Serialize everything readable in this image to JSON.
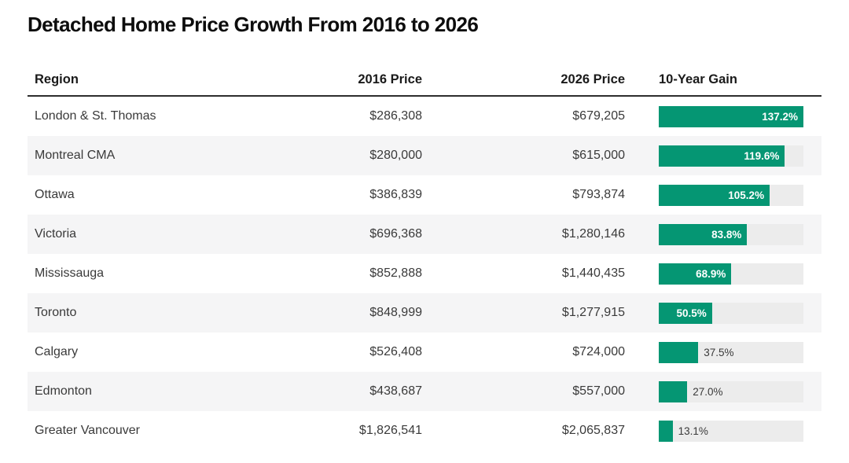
{
  "page": {
    "title": "Detached Home Price Growth From 2016 to 2026"
  },
  "table": {
    "headers": {
      "region": "Region",
      "price_2016": "2016 Price",
      "price_2026": "2026 Price",
      "gain": "10-Year Gain"
    },
    "rows": [
      {
        "region": "London & St. Thomas",
        "price_2016": "$286,308",
        "price_2026": "$679,205",
        "gain_label": "137.2%",
        "gain_value": 137.2,
        "label_inside": true,
        "striped": false
      },
      {
        "region": "Montreal CMA",
        "price_2016": "$280,000",
        "price_2026": "$615,000",
        "gain_label": "119.6%",
        "gain_value": 119.6,
        "label_inside": true,
        "striped": true
      },
      {
        "region": "Ottawa",
        "price_2016": "$386,839",
        "price_2026": "$793,874",
        "gain_label": "105.2%",
        "gain_value": 105.2,
        "label_inside": true,
        "striped": false
      },
      {
        "region": "Victoria",
        "price_2016": "$696,368",
        "price_2026": "$1,280,146",
        "gain_label": "83.8%",
        "gain_value": 83.8,
        "label_inside": true,
        "striped": true
      },
      {
        "region": "Mississauga",
        "price_2016": "$852,888",
        "price_2026": "$1,440,435",
        "gain_label": "68.9%",
        "gain_value": 68.9,
        "label_inside": true,
        "striped": false
      },
      {
        "region": "Toronto",
        "price_2016": "$848,999",
        "price_2026": "$1,277,915",
        "gain_label": "50.5%",
        "gain_value": 50.5,
        "label_inside": true,
        "striped": true
      },
      {
        "region": "Calgary",
        "price_2016": "$526,408",
        "price_2026": "$724,000",
        "gain_label": "37.5%",
        "gain_value": 37.5,
        "label_inside": false,
        "striped": false
      },
      {
        "region": "Edmonton",
        "price_2016": "$438,687",
        "price_2026": "$557,000",
        "gain_label": "27.0%",
        "gain_value": 27.0,
        "label_inside": false,
        "striped": true
      },
      {
        "region": "Greater Vancouver",
        "price_2016": "$1,826,541",
        "price_2026": "$2,065,837",
        "gain_label": "13.1%",
        "gain_value": 13.1,
        "label_inside": false,
        "striped": false
      }
    ]
  },
  "chart_data": {
    "type": "table",
    "title": "Detached Home Price Growth From 2016 to 2026",
    "columns": [
      "Region",
      "2016 Price",
      "2026 Price",
      "10-Year Gain"
    ],
    "categories": [
      "London & St. Thomas",
      "Montreal CMA",
      "Ottawa",
      "Victoria",
      "Mississauga",
      "Toronto",
      "Calgary",
      "Edmonton",
      "Greater Vancouver"
    ],
    "series": [
      {
        "name": "2016 Price ($)",
        "values": [
          286308,
          280000,
          386839,
          696368,
          852888,
          848999,
          526408,
          438687,
          1826541
        ]
      },
      {
        "name": "2026 Price ($)",
        "values": [
          679205,
          615000,
          793874,
          1280146,
          1440435,
          1277915,
          724000,
          557000,
          2065837
        ]
      },
      {
        "name": "10-Year Gain (%)",
        "values": [
          137.2,
          119.6,
          105.2,
          83.8,
          68.9,
          50.5,
          37.5,
          27.0,
          13.1
        ]
      }
    ],
    "bar_column": "10-Year Gain",
    "bar_scale_max": 137.2,
    "bar_orientation": "horizontal",
    "legend": "none",
    "grid": false
  },
  "colors": {
    "bar_fill": "#059673",
    "bar_track": "#ececec",
    "row_stripe": "#f5f5f6",
    "header_rule": "#2d2d2d",
    "title_text": "#0d0d0d",
    "body_text": "#3a3a3a"
  }
}
